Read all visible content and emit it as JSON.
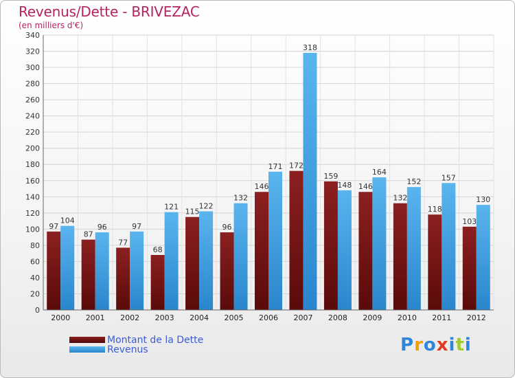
{
  "title": "Revenus/Dette - BRIVEZAC",
  "subtitle": "(en milliers d'€)",
  "colors": {
    "dette": "#7a1515",
    "revenus": "#3a9be0",
    "title": "#b3245f",
    "legend_text": "#3b5bdb"
  },
  "legend": {
    "dette": "Montant de la Dette",
    "revenus": "Revenus"
  },
  "brand": {
    "letters": [
      "P",
      "r",
      "o",
      "x",
      "i",
      "t",
      "i"
    ],
    "colors": [
      "#2f86d8",
      "#f0a000",
      "#2f86d8",
      "#e13b24",
      "#2f86d8",
      "#9fcd2b",
      "#2f86d8"
    ]
  },
  "chart_data": {
    "type": "bar",
    "title": "Revenus/Dette - BRIVEZAC",
    "ylabel": "(en milliers d'€)",
    "xlabel": "",
    "ylim": [
      0,
      340
    ],
    "ytick_step": 20,
    "grid": true,
    "categories": [
      "2000",
      "2001",
      "2002",
      "2003",
      "2004",
      "2005",
      "2006",
      "2007",
      "2008",
      "2009",
      "2010",
      "2011",
      "2012"
    ],
    "series": [
      {
        "name": "Montant de la Dette",
        "values": [
          97,
          87,
          77,
          68,
          115,
          96,
          146,
          172,
          159,
          146,
          132,
          118,
          103
        ]
      },
      {
        "name": "Revenus",
        "values": [
          104,
          96,
          97,
          121,
          122,
          132,
          171,
          318,
          148,
          164,
          152,
          157,
          130
        ]
      }
    ]
  }
}
